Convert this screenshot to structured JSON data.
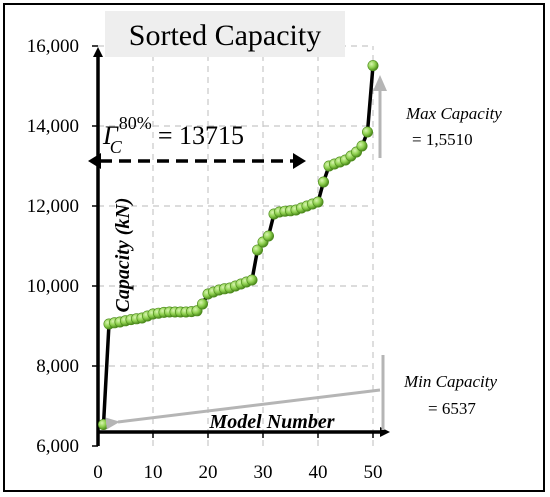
{
  "chart_data": {
    "type": "scatter",
    "title": "Sorted Capacity",
    "xlabel": "Model Number",
    "ylabel": "Capacity (kN)",
    "xlim": [
      0,
      50
    ],
    "ylim": [
      6000,
      16000
    ],
    "x_ticks": [
      "0",
      "10",
      "20",
      "30",
      "40",
      "50"
    ],
    "y_ticks": [
      "6,000",
      "8,000",
      "10,000",
      "12,000",
      "14,000",
      "16,000"
    ],
    "grid": true,
    "series": [
      {
        "x": [
          1,
          2,
          3,
          4,
          5,
          6,
          7,
          8,
          9,
          10,
          11,
          12,
          13,
          14,
          15,
          16,
          17,
          18,
          19,
          20,
          21,
          22,
          23,
          24,
          25,
          26,
          27,
          28,
          29,
          30,
          31,
          32,
          33,
          34,
          35,
          36,
          37,
          38,
          39,
          40,
          41,
          42,
          43,
          44,
          45,
          46,
          47,
          48,
          49,
          50
        ],
        "values": [
          6537,
          9050,
          9080,
          9100,
          9130,
          9160,
          9180,
          9200,
          9250,
          9300,
          9320,
          9340,
          9350,
          9350,
          9350,
          9350,
          9360,
          9380,
          9550,
          9800,
          9850,
          9900,
          9930,
          9950,
          10000,
          10050,
          10100,
          10150,
          10900,
          11100,
          11250,
          11800,
          11850,
          11870,
          11880,
          11900,
          11950,
          12000,
          12050,
          12100,
          12600,
          13000,
          13050,
          13100,
          13150,
          13250,
          13350,
          13500,
          13850,
          15510
        ]
      }
    ]
  },
  "title": "Sorted Capacity",
  "gamma": {
    "symbol": "Γ",
    "subscript": "C",
    "superscript": "80%",
    "equals": "= 13715"
  },
  "max_annotation": {
    "label": "Max Capacity",
    "value": "= 1,5510"
  },
  "min_annotation": {
    "label": "Min Capacity",
    "value": "= 6537"
  },
  "colors": {
    "marker_fill": "#8fd14f",
    "marker_stroke": "#4c8a1c",
    "line": "#000000",
    "grid": "#c8c8c8",
    "annotation_arrow": "#b5b5b5"
  }
}
